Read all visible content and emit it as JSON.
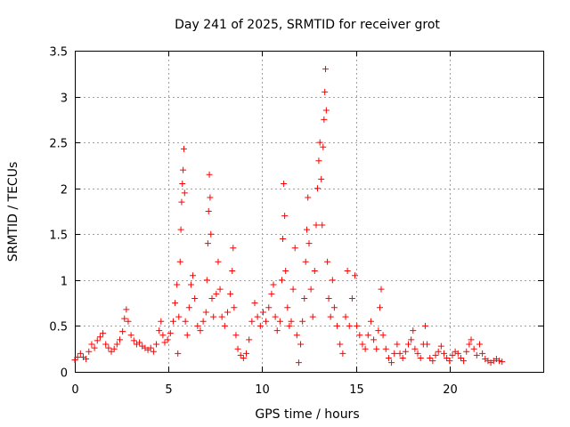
{
  "chart_data": {
    "type": "scatter",
    "title": "Day 241 of 2025, SRMTID for receiver grot",
    "xlabel": "GPS time / hours",
    "ylabel": "SRMTID / TECUs",
    "xlim": [
      0,
      25
    ],
    "ylim": [
      0,
      3.5
    ],
    "xticks": [
      "0",
      "5",
      "10",
      "15",
      "20"
    ],
    "yticks": [
      "0",
      "0.5",
      "1",
      "1.5",
      "2",
      "2.5",
      "3",
      "3.5"
    ],
    "grid": true,
    "marker": "+",
    "color": "#ff0000",
    "series": [
      {
        "name": "SRMTID",
        "points": [
          [
            0.0,
            0.13
          ],
          [
            0.15,
            0.16
          ],
          [
            0.3,
            0.2
          ],
          [
            0.45,
            0.16
          ],
          [
            0.6,
            0.14
          ],
          [
            0.75,
            0.22
          ],
          [
            0.9,
            0.3
          ],
          [
            1.05,
            0.26
          ],
          [
            1.2,
            0.34
          ],
          [
            1.35,
            0.38
          ],
          [
            1.5,
            0.42
          ],
          [
            1.65,
            0.3
          ],
          [
            1.8,
            0.26
          ],
          [
            1.95,
            0.22
          ],
          [
            2.1,
            0.25
          ],
          [
            2.25,
            0.3
          ],
          [
            2.4,
            0.35
          ],
          [
            2.55,
            0.44
          ],
          [
            2.65,
            0.58
          ],
          [
            2.75,
            0.68
          ],
          [
            2.85,
            0.55
          ],
          [
            3.0,
            0.4
          ],
          [
            3.15,
            0.34
          ],
          [
            3.3,
            0.3
          ],
          [
            3.45,
            0.32
          ],
          [
            3.6,
            0.28
          ],
          [
            3.75,
            0.26
          ],
          [
            3.9,
            0.24
          ],
          [
            4.05,
            0.26
          ],
          [
            4.2,
            0.22
          ],
          [
            4.35,
            0.3
          ],
          [
            4.5,
            0.45
          ],
          [
            4.6,
            0.55
          ],
          [
            4.7,
            0.4
          ],
          [
            4.8,
            0.32
          ],
          [
            4.95,
            0.35
          ],
          [
            5.1,
            0.42
          ],
          [
            5.25,
            0.55
          ],
          [
            5.35,
            0.75
          ],
          [
            5.45,
            0.95
          ],
          [
            5.5,
            0.2
          ],
          [
            5.55,
            0.6
          ],
          [
            5.62,
            1.2
          ],
          [
            5.66,
            1.55
          ],
          [
            5.7,
            1.85
          ],
          [
            5.74,
            2.05
          ],
          [
            5.78,
            2.2
          ],
          [
            5.82,
            2.43
          ],
          [
            5.86,
            1.95
          ],
          [
            5.9,
            0.55
          ],
          [
            6.0,
            0.4
          ],
          [
            6.1,
            0.7
          ],
          [
            6.2,
            0.95
          ],
          [
            6.3,
            1.05
          ],
          [
            6.4,
            0.8
          ],
          [
            6.55,
            0.5
          ],
          [
            6.7,
            0.45
          ],
          [
            6.85,
            0.55
          ],
          [
            7.0,
            0.65
          ],
          [
            7.05,
            1.0
          ],
          [
            7.1,
            1.4
          ],
          [
            7.14,
            1.75
          ],
          [
            7.18,
            2.15
          ],
          [
            7.22,
            1.9
          ],
          [
            7.26,
            1.5
          ],
          [
            7.32,
            0.8
          ],
          [
            7.4,
            0.6
          ],
          [
            7.55,
            0.85
          ],
          [
            7.65,
            1.2
          ],
          [
            7.75,
            0.9
          ],
          [
            7.85,
            0.6
          ],
          [
            8.0,
            0.5
          ],
          [
            8.15,
            0.65
          ],
          [
            8.3,
            0.85
          ],
          [
            8.4,
            1.1
          ],
          [
            8.45,
            1.35
          ],
          [
            8.5,
            0.7
          ],
          [
            8.6,
            0.4
          ],
          [
            8.7,
            0.25
          ],
          [
            8.85,
            0.18
          ],
          [
            9.0,
            0.15
          ],
          [
            9.15,
            0.2
          ],
          [
            9.3,
            0.35
          ],
          [
            9.45,
            0.55
          ],
          [
            9.6,
            0.75
          ],
          [
            9.75,
            0.6
          ],
          [
            9.9,
            0.5
          ],
          [
            10.05,
            0.65
          ],
          [
            10.2,
            0.55
          ],
          [
            10.35,
            0.7
          ],
          [
            10.5,
            0.85
          ],
          [
            10.6,
            0.95
          ],
          [
            10.7,
            0.6
          ],
          [
            10.8,
            0.45
          ],
          [
            10.95,
            0.55
          ],
          [
            11.05,
            1.0
          ],
          [
            11.1,
            1.45
          ],
          [
            11.15,
            2.05
          ],
          [
            11.2,
            1.7
          ],
          [
            11.25,
            1.1
          ],
          [
            11.35,
            0.7
          ],
          [
            11.45,
            0.5
          ],
          [
            11.55,
            0.55
          ],
          [
            11.65,
            0.9
          ],
          [
            11.75,
            1.35
          ],
          [
            11.85,
            0.4
          ],
          [
            11.95,
            0.1
          ],
          [
            12.05,
            0.3
          ],
          [
            12.15,
            0.55
          ],
          [
            12.25,
            0.8
          ],
          [
            12.32,
            1.2
          ],
          [
            12.38,
            1.55
          ],
          [
            12.44,
            1.9
          ],
          [
            12.5,
            1.4
          ],
          [
            12.6,
            0.9
          ],
          [
            12.7,
            0.6
          ],
          [
            12.8,
            1.1
          ],
          [
            12.88,
            1.6
          ],
          [
            12.95,
            2.0
          ],
          [
            13.02,
            2.3
          ],
          [
            13.08,
            2.5
          ],
          [
            13.15,
            2.1
          ],
          [
            13.2,
            1.6
          ],
          [
            13.25,
            2.45
          ],
          [
            13.3,
            2.75
          ],
          [
            13.34,
            3.05
          ],
          [
            13.38,
            3.3
          ],
          [
            13.42,
            2.85
          ],
          [
            13.48,
            1.2
          ],
          [
            13.55,
            0.8
          ],
          [
            13.65,
            0.6
          ],
          [
            13.75,
            1.0
          ],
          [
            13.85,
            0.7
          ],
          [
            14.0,
            0.5
          ],
          [
            14.15,
            0.3
          ],
          [
            14.3,
            0.2
          ],
          [
            14.45,
            0.6
          ],
          [
            14.55,
            1.1
          ],
          [
            14.65,
            0.5
          ],
          [
            14.8,
            0.8
          ],
          [
            14.95,
            1.05
          ],
          [
            15.05,
            0.5
          ],
          [
            15.2,
            0.4
          ],
          [
            15.35,
            0.3
          ],
          [
            15.5,
            0.25
          ],
          [
            15.65,
            0.4
          ],
          [
            15.8,
            0.55
          ],
          [
            15.95,
            0.35
          ],
          [
            16.1,
            0.25
          ],
          [
            16.2,
            0.45
          ],
          [
            16.28,
            0.7
          ],
          [
            16.35,
            0.9
          ],
          [
            16.45,
            0.4
          ],
          [
            16.6,
            0.25
          ],
          [
            16.75,
            0.15
          ],
          [
            16.9,
            0.1
          ],
          [
            17.05,
            0.2
          ],
          [
            17.2,
            0.3
          ],
          [
            17.35,
            0.2
          ],
          [
            17.5,
            0.15
          ],
          [
            17.65,
            0.22
          ],
          [
            17.8,
            0.3
          ],
          [
            17.95,
            0.35
          ],
          [
            18.05,
            0.45
          ],
          [
            18.15,
            0.25
          ],
          [
            18.3,
            0.2
          ],
          [
            18.45,
            0.15
          ],
          [
            18.6,
            0.3
          ],
          [
            18.7,
            0.5
          ],
          [
            18.8,
            0.3
          ],
          [
            18.95,
            0.15
          ],
          [
            19.1,
            0.12
          ],
          [
            19.25,
            0.18
          ],
          [
            19.4,
            0.22
          ],
          [
            19.55,
            0.28
          ],
          [
            19.7,
            0.2
          ],
          [
            19.85,
            0.15
          ],
          [
            20.0,
            0.12
          ],
          [
            20.15,
            0.18
          ],
          [
            20.3,
            0.22
          ],
          [
            20.45,
            0.2
          ],
          [
            20.6,
            0.15
          ],
          [
            20.75,
            0.12
          ],
          [
            20.9,
            0.22
          ],
          [
            21.05,
            0.3
          ],
          [
            21.15,
            0.35
          ],
          [
            21.3,
            0.25
          ],
          [
            21.45,
            0.18
          ],
          [
            21.6,
            0.3
          ],
          [
            21.75,
            0.2
          ],
          [
            21.9,
            0.14
          ],
          [
            22.05,
            0.12
          ],
          [
            22.2,
            0.1
          ],
          [
            22.35,
            0.12
          ],
          [
            22.5,
            0.14
          ],
          [
            22.65,
            0.12
          ],
          [
            22.8,
            0.11
          ]
        ]
      }
    ]
  }
}
